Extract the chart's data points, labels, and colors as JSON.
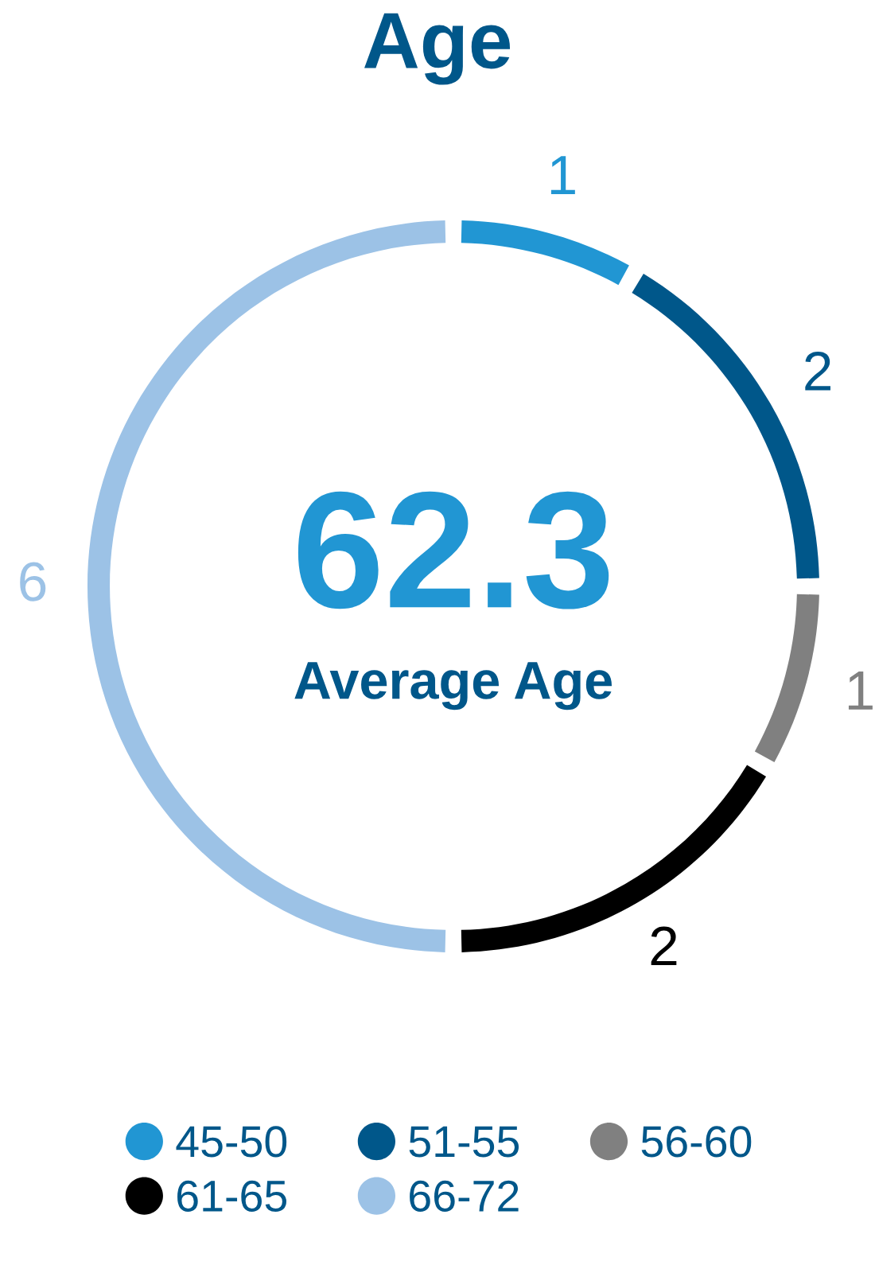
{
  "chart_data": {
    "type": "donut",
    "title": "Age",
    "categories": [
      "45-50",
      "51-55",
      "56-60",
      "61-65",
      "66-72"
    ],
    "values": [
      1,
      2,
      1,
      2,
      6
    ],
    "colors": [
      "#2196d3",
      "#00578a",
      "#808080",
      "#000000",
      "#9cc2e6"
    ],
    "data_labels": true,
    "legend": "bottom",
    "annotations": [
      "62.3",
      "Average Age"
    ]
  }
}
